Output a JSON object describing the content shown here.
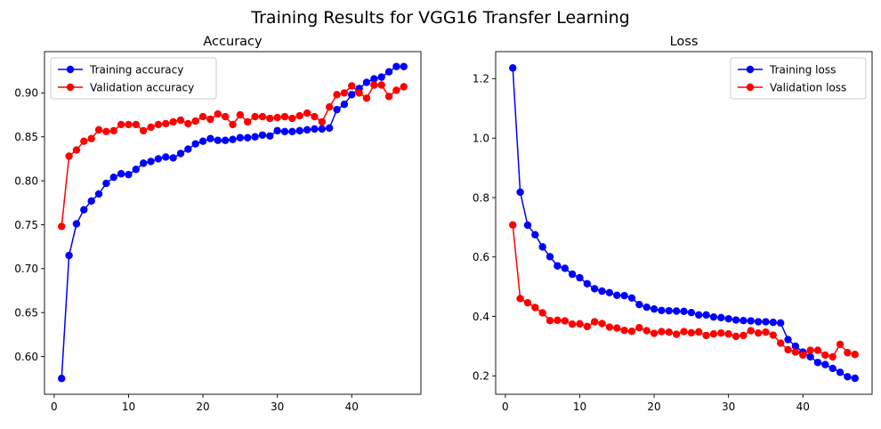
{
  "suptitle": "Training Results for VGG16 Transfer Learning",
  "colors": {
    "training": "#0000ff",
    "validation": "#ff0000"
  },
  "chart_data": [
    {
      "type": "line",
      "title": "Accuracy",
      "xlabel": "",
      "ylabel": "",
      "xlim": [
        -1.3,
        49.3
      ],
      "ylim": [
        0.557,
        0.947
      ],
      "xticks": [
        0,
        10,
        20,
        30,
        40
      ],
      "yticks": [
        0.6,
        0.65,
        0.7,
        0.75,
        0.8,
        0.85,
        0.9
      ],
      "ytick_labels": [
        "0.60",
        "0.65",
        "0.70",
        "0.75",
        "0.80",
        "0.85",
        "0.90"
      ],
      "legend_position": "upper-left",
      "grid": false,
      "x": [
        1,
        2,
        3,
        4,
        5,
        6,
        7,
        8,
        9,
        10,
        11,
        12,
        13,
        14,
        15,
        16,
        17,
        18,
        19,
        20,
        21,
        22,
        23,
        24,
        25,
        26,
        27,
        28,
        29,
        30,
        31,
        32,
        33,
        34,
        35,
        36,
        37,
        38,
        39,
        40,
        41,
        42,
        43,
        44,
        45,
        46,
        47
      ],
      "series": [
        {
          "name": "Training accuracy",
          "color": "#0000ff",
          "values": [
            0.575,
            0.715,
            0.751,
            0.767,
            0.777,
            0.785,
            0.797,
            0.804,
            0.808,
            0.807,
            0.813,
            0.82,
            0.822,
            0.825,
            0.827,
            0.826,
            0.831,
            0.836,
            0.842,
            0.845,
            0.848,
            0.846,
            0.846,
            0.847,
            0.849,
            0.849,
            0.85,
            0.852,
            0.851,
            0.857,
            0.856,
            0.856,
            0.857,
            0.858,
            0.859,
            0.859,
            0.86,
            0.881,
            0.887,
            0.898,
            0.905,
            0.912,
            0.916,
            0.918,
            0.924,
            0.93,
            0.93
          ]
        },
        {
          "name": "Validation accuracy",
          "color": "#ff0000",
          "values": [
            0.748,
            0.828,
            0.835,
            0.845,
            0.848,
            0.858,
            0.856,
            0.857,
            0.864,
            0.864,
            0.864,
            0.857,
            0.861,
            0.864,
            0.865,
            0.867,
            0.869,
            0.865,
            0.868,
            0.873,
            0.87,
            0.876,
            0.873,
            0.864,
            0.875,
            0.867,
            0.873,
            0.873,
            0.871,
            0.872,
            0.873,
            0.871,
            0.874,
            0.877,
            0.873,
            0.867,
            0.884,
            0.898,
            0.9,
            0.908,
            0.9,
            0.894,
            0.909,
            0.909,
            0.896,
            0.903,
            0.907
          ]
        }
      ]
    },
    {
      "type": "line",
      "title": "Loss",
      "xlabel": "",
      "ylabel": "",
      "xlim": [
        -1.3,
        49.3
      ],
      "ylim": [
        0.138,
        1.291
      ],
      "xticks": [
        0,
        10,
        20,
        30,
        40
      ],
      "yticks": [
        0.2,
        0.4,
        0.6,
        0.8,
        1.0,
        1.2
      ],
      "ytick_labels": [
        "0.2",
        "0.4",
        "0.6",
        "0.8",
        "1.0",
        "1.2"
      ],
      "legend_position": "upper-right",
      "grid": false,
      "x": [
        1,
        2,
        3,
        4,
        5,
        6,
        7,
        8,
        9,
        10,
        11,
        12,
        13,
        14,
        15,
        16,
        17,
        18,
        19,
        20,
        21,
        22,
        23,
        24,
        25,
        26,
        27,
        28,
        29,
        30,
        31,
        32,
        33,
        34,
        35,
        36,
        37,
        38,
        39,
        40,
        41,
        42,
        43,
        44,
        45,
        46,
        47
      ],
      "series": [
        {
          "name": "Training loss",
          "color": "#0000ff",
          "values": [
            1.236,
            0.818,
            0.707,
            0.675,
            0.634,
            0.601,
            0.57,
            0.562,
            0.542,
            0.53,
            0.51,
            0.493,
            0.485,
            0.48,
            0.471,
            0.47,
            0.462,
            0.44,
            0.431,
            0.425,
            0.42,
            0.419,
            0.418,
            0.417,
            0.413,
            0.405,
            0.405,
            0.398,
            0.396,
            0.392,
            0.388,
            0.386,
            0.385,
            0.382,
            0.382,
            0.38,
            0.378,
            0.322,
            0.3,
            0.28,
            0.264,
            0.245,
            0.238,
            0.225,
            0.212,
            0.197,
            0.192
          ]
        },
        {
          "name": "Validation loss",
          "color": "#ff0000",
          "values": [
            0.708,
            0.46,
            0.446,
            0.43,
            0.412,
            0.386,
            0.387,
            0.385,
            0.374,
            0.375,
            0.366,
            0.382,
            0.376,
            0.364,
            0.361,
            0.353,
            0.35,
            0.362,
            0.352,
            0.343,
            0.349,
            0.347,
            0.34,
            0.349,
            0.345,
            0.348,
            0.336,
            0.341,
            0.344,
            0.341,
            0.333,
            0.336,
            0.352,
            0.344,
            0.347,
            0.337,
            0.31,
            0.288,
            0.28,
            0.27,
            0.286,
            0.286,
            0.27,
            0.264,
            0.306,
            0.278,
            0.272
          ]
        }
      ]
    }
  ]
}
